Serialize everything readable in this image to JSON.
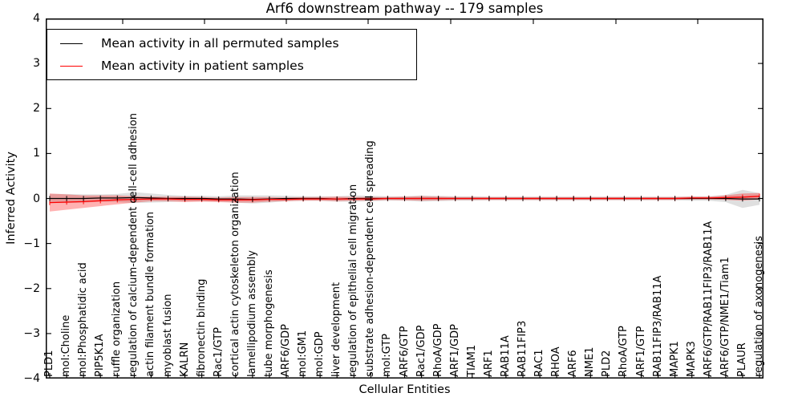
{
  "chart_data": {
    "type": "line",
    "title": "Arf6 downstream pathway -- 179 samples",
    "xlabel": "Cellular Entities",
    "ylabel": "Inferred Activity",
    "ylim": [
      -4,
      4
    ],
    "ytick_labels": [
      "4",
      "3",
      "2",
      "1",
      "0",
      "−1",
      "−2",
      "−3",
      "−4"
    ],
    "grid": false,
    "legend_position": "upper left",
    "categories": [
      "PLD1",
      "mol:Choline",
      "mol:Phosphatidic acid",
      "PIP5K1A",
      "ruffle organization",
      "regulation of calcium-dependent cell-cell adhesion",
      "actin filament bundle formation",
      "myoblast fusion",
      "KALRN",
      "fibronectin binding",
      "Rac1/GTP",
      "cortical actin cytoskeleton organization",
      "lamellipodium assembly",
      "tube morphogenesis",
      "ARF6/GDP",
      "mol:GM1",
      "mol:GDP",
      "liver development",
      "regulation of epithelial cell migration",
      "substrate adhesion-dependent cell spreading",
      "mol:GTP",
      "ARF6/GTP",
      "Rac1/GDP",
      "RhoA/GDP",
      "ARF1/GDP",
      "TIAM1",
      "ARF1",
      "RAB11A",
      "RAB11FIP3",
      "RAC1",
      "RHOA",
      "ARF6",
      "NME1",
      "PLD2",
      "RhoA/GTP",
      "ARF1/GTP",
      "RAB11FIP3/RAB11A",
      "MAPK1",
      "MAPK3",
      "ARF6/GTP/RAB11FIP3/RAB11A",
      "ARF6/GTP/NME1/Tiam1",
      "PLAUR",
      "regulation of axonogenesis"
    ],
    "series": [
      {
        "name": "Mean activity in all permuted samples",
        "color": "#000000",
        "band_color": "#c0c0c0",
        "band_opacity": 0.5,
        "mean": [
          0.0,
          0.0,
          0.0,
          0.01,
          0.01,
          0.02,
          0.01,
          0.0,
          0.0,
          0.0,
          -0.01,
          -0.01,
          -0.02,
          -0.01,
          0.0,
          0.0,
          0.0,
          -0.01,
          0.0,
          0.0,
          0.0,
          0.0,
          0.0,
          0.0,
          0.0,
          0.0,
          0.0,
          0.0,
          0.0,
          0.0,
          0.0,
          0.0,
          0.0,
          0.0,
          0.0,
          0.0,
          0.0,
          0.0,
          0.0,
          0.0,
          0.0,
          -0.01,
          -0.01
        ],
        "std": [
          0.1,
          0.1,
          0.09,
          0.08,
          0.09,
          0.12,
          0.1,
          0.08,
          0.06,
          0.06,
          0.06,
          0.08,
          0.09,
          0.08,
          0.06,
          0.05,
          0.05,
          0.06,
          0.07,
          0.06,
          0.05,
          0.05,
          0.07,
          0.06,
          0.05,
          0.05,
          0.04,
          0.04,
          0.04,
          0.04,
          0.04,
          0.04,
          0.04,
          0.04,
          0.04,
          0.04,
          0.04,
          0.04,
          0.05,
          0.05,
          0.08,
          0.2,
          0.13
        ]
      },
      {
        "name": "Mean activity in patient samples",
        "color": "#ff0000",
        "band_color": "#ff0000",
        "band_opacity": 0.3,
        "mean": [
          -0.09,
          -0.08,
          -0.07,
          -0.05,
          -0.03,
          -0.02,
          -0.01,
          -0.01,
          -0.02,
          -0.02,
          -0.03,
          -0.03,
          -0.03,
          -0.02,
          -0.02,
          -0.01,
          -0.01,
          -0.01,
          -0.01,
          -0.01,
          0.0,
          0.0,
          0.0,
          0.0,
          0.0,
          0.0,
          0.0,
          0.0,
          0.0,
          0.0,
          0.0,
          0.0,
          0.0,
          0.0,
          0.0,
          0.0,
          0.0,
          0.0,
          0.01,
          0.01,
          0.02,
          0.03,
          0.05
        ],
        "std": [
          0.2,
          0.17,
          0.14,
          0.12,
          0.1,
          0.07,
          0.05,
          0.05,
          0.06,
          0.05,
          0.05,
          0.06,
          0.06,
          0.05,
          0.04,
          0.04,
          0.04,
          0.05,
          0.04,
          0.04,
          0.03,
          0.04,
          0.05,
          0.04,
          0.03,
          0.03,
          0.03,
          0.03,
          0.03,
          0.03,
          0.03,
          0.03,
          0.03,
          0.03,
          0.03,
          0.03,
          0.03,
          0.03,
          0.03,
          0.03,
          0.05,
          0.08,
          0.07
        ]
      }
    ]
  }
}
